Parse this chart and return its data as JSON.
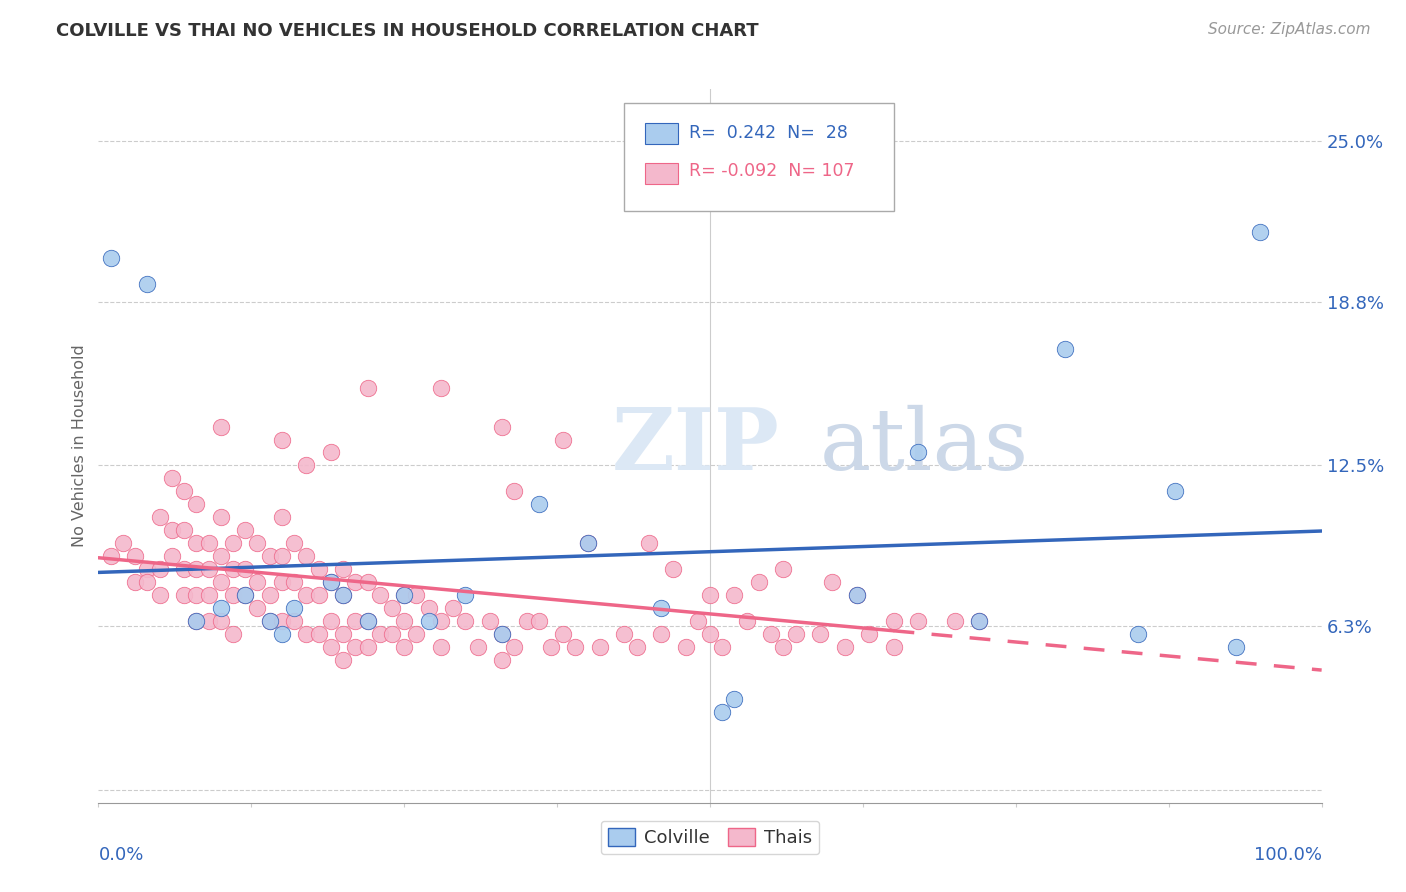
{
  "title": "COLVILLE VS THAI NO VEHICLES IN HOUSEHOLD CORRELATION CHART",
  "source": "Source: ZipAtlas.com",
  "ylabel": "No Vehicles in Household",
  "ytick_vals": [
    0.0,
    0.063,
    0.125,
    0.188,
    0.25
  ],
  "ytick_labels": [
    "",
    "6.3%",
    "12.5%",
    "18.8%",
    "25.0%"
  ],
  "xlim": [
    0.0,
    1.0
  ],
  "ylim": [
    -0.005,
    0.27
  ],
  "colville_scatter_color": "#aaccee",
  "thais_scatter_color": "#f4b8cc",
  "colville_line_color": "#3366bb",
  "thais_line_color": "#ee6688",
  "R_colville": 0.242,
  "N_colville": 28,
  "R_thais": -0.092,
  "N_thais": 107,
  "colville_x": [
    0.01,
    0.04,
    0.08,
    0.1,
    0.12,
    0.14,
    0.15,
    0.16,
    0.19,
    0.2,
    0.22,
    0.25,
    0.27,
    0.3,
    0.33,
    0.36,
    0.4,
    0.46,
    0.51,
    0.52,
    0.62,
    0.67,
    0.72,
    0.79,
    0.85,
    0.88,
    0.93,
    0.95
  ],
  "colville_y": [
    0.205,
    0.195,
    0.065,
    0.07,
    0.075,
    0.065,
    0.06,
    0.07,
    0.08,
    0.075,
    0.065,
    0.075,
    0.065,
    0.075,
    0.06,
    0.11,
    0.095,
    0.07,
    0.03,
    0.035,
    0.075,
    0.13,
    0.065,
    0.17,
    0.06,
    0.115,
    0.055,
    0.215
  ],
  "thais_x": [
    0.01,
    0.02,
    0.03,
    0.03,
    0.04,
    0.04,
    0.05,
    0.05,
    0.05,
    0.06,
    0.06,
    0.06,
    0.07,
    0.07,
    0.07,
    0.07,
    0.08,
    0.08,
    0.08,
    0.08,
    0.08,
    0.09,
    0.09,
    0.09,
    0.09,
    0.1,
    0.1,
    0.1,
    0.1,
    0.11,
    0.11,
    0.11,
    0.11,
    0.12,
    0.12,
    0.12,
    0.13,
    0.13,
    0.13,
    0.14,
    0.14,
    0.14,
    0.15,
    0.15,
    0.15,
    0.15,
    0.16,
    0.16,
    0.16,
    0.17,
    0.17,
    0.17,
    0.18,
    0.18,
    0.18,
    0.19,
    0.19,
    0.19,
    0.2,
    0.2,
    0.2,
    0.2,
    0.21,
    0.21,
    0.21,
    0.22,
    0.22,
    0.22,
    0.23,
    0.23,
    0.24,
    0.24,
    0.25,
    0.25,
    0.25,
    0.26,
    0.26,
    0.27,
    0.28,
    0.28,
    0.29,
    0.3,
    0.31,
    0.32,
    0.33,
    0.33,
    0.34,
    0.35,
    0.36,
    0.37,
    0.38,
    0.39,
    0.41,
    0.43,
    0.44,
    0.46,
    0.48,
    0.49,
    0.5,
    0.51,
    0.53,
    0.55,
    0.56,
    0.57,
    0.59,
    0.61,
    0.63,
    0.65,
    0.67,
    0.7,
    0.72
  ],
  "thais_y": [
    0.09,
    0.095,
    0.09,
    0.08,
    0.085,
    0.08,
    0.105,
    0.085,
    0.075,
    0.12,
    0.1,
    0.09,
    0.115,
    0.1,
    0.085,
    0.075,
    0.11,
    0.095,
    0.085,
    0.075,
    0.065,
    0.095,
    0.085,
    0.075,
    0.065,
    0.105,
    0.09,
    0.08,
    0.065,
    0.095,
    0.085,
    0.075,
    0.06,
    0.1,
    0.085,
    0.075,
    0.095,
    0.08,
    0.07,
    0.09,
    0.075,
    0.065,
    0.105,
    0.09,
    0.08,
    0.065,
    0.095,
    0.08,
    0.065,
    0.09,
    0.075,
    0.06,
    0.085,
    0.075,
    0.06,
    0.08,
    0.065,
    0.055,
    0.085,
    0.075,
    0.06,
    0.05,
    0.08,
    0.065,
    0.055,
    0.08,
    0.065,
    0.055,
    0.075,
    0.06,
    0.07,
    0.06,
    0.075,
    0.065,
    0.055,
    0.075,
    0.06,
    0.07,
    0.065,
    0.055,
    0.07,
    0.065,
    0.055,
    0.065,
    0.06,
    0.05,
    0.055,
    0.065,
    0.065,
    0.055,
    0.06,
    0.055,
    0.055,
    0.06,
    0.055,
    0.06,
    0.055,
    0.065,
    0.06,
    0.055,
    0.065,
    0.06,
    0.055,
    0.06,
    0.06,
    0.055,
    0.06,
    0.055,
    0.065,
    0.065,
    0.065
  ],
  "thais_extra_x": [
    0.28,
    0.33,
    0.34,
    0.38,
    0.4,
    0.45,
    0.47,
    0.5,
    0.52,
    0.54,
    0.56,
    0.6,
    0.62,
    0.65,
    0.22,
    0.15,
    0.1,
    0.17,
    0.19
  ],
  "thais_extra_y": [
    0.155,
    0.14,
    0.115,
    0.135,
    0.095,
    0.095,
    0.085,
    0.075,
    0.075,
    0.08,
    0.085,
    0.08,
    0.075,
    0.065,
    0.155,
    0.135,
    0.14,
    0.125,
    0.13
  ],
  "watermark": "ZIPatlas",
  "background_color": "#ffffff",
  "grid_color": "#cccccc"
}
